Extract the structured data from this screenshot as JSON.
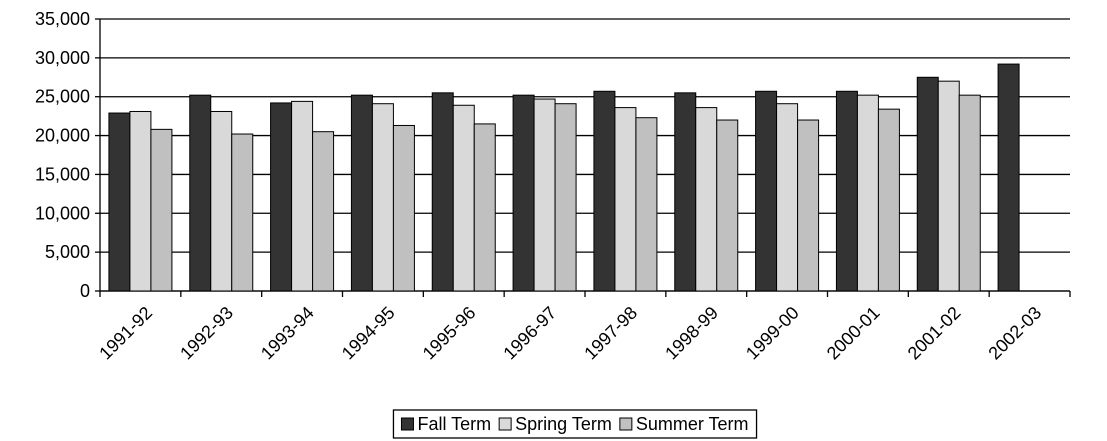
{
  "chart_data": {
    "type": "bar",
    "categories": [
      "1991-92",
      "1992-93",
      "1993-94",
      "1994-95",
      "1995-96",
      "1996-97",
      "1997-98",
      "1998-99",
      "1999-00",
      "2000-01",
      "2001-02",
      "2002-03"
    ],
    "series": [
      {
        "name": "Fall Term",
        "color": "#333333",
        "values": [
          22900,
          25200,
          24200,
          25200,
          25500,
          25200,
          25700,
          25500,
          25700,
          25700,
          27500,
          29200
        ]
      },
      {
        "name": "Spring Term",
        "color": "#d9d9d9",
        "values": [
          23100,
          23100,
          24400,
          24100,
          23900,
          24700,
          23600,
          23600,
          24100,
          25200,
          27000,
          null
        ]
      },
      {
        "name": "Summer Term",
        "color": "#c0c0c0",
        "values": [
          20800,
          20200,
          20500,
          21300,
          21500,
          24100,
          22300,
          22000,
          22000,
          23400,
          25200,
          null
        ]
      }
    ],
    "ylim": [
      0,
      35000
    ],
    "yticks": [
      0,
      {
        "value": 5000,
        "label": "5,000"
      },
      {
        "value": 10000,
        "label": "10,000"
      },
      {
        "value": 15000,
        "label": "15,000"
      },
      {
        "value": 20000,
        "label": "20,000"
      },
      {
        "value": 25000,
        "label": "25,000"
      },
      {
        "value": 30000,
        "label": "30,000"
      },
      {
        "value": 35000,
        "label": "35,000"
      }
    ],
    "grid": true,
    "legend": "bottom"
  }
}
